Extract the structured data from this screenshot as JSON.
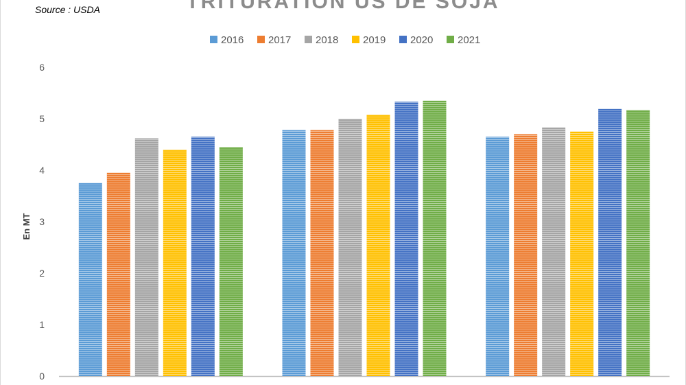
{
  "source": "Source : USDA",
  "chart_data": {
    "type": "bar",
    "title": "TRITURATION US DE SOJA",
    "ylabel": "En MT",
    "xlabel": "",
    "ylim": [
      0,
      6
    ],
    "yticks": [
      0,
      1,
      2,
      3,
      4,
      5,
      6
    ],
    "categories": [
      "",
      "",
      ""
    ],
    "legend_position": "top",
    "grid": false,
    "series": [
      {
        "name": "2016",
        "color": "#5b9bd5",
        "values": [
          3.75,
          4.78,
          4.65
        ]
      },
      {
        "name": "2017",
        "color": "#ed7d31",
        "values": [
          3.95,
          4.78,
          4.7
        ]
      },
      {
        "name": "2018",
        "color": "#a5a5a5",
        "values": [
          4.62,
          5.0,
          4.83
        ]
      },
      {
        "name": "2019",
        "color": "#ffc000",
        "values": [
          4.4,
          5.08,
          4.75
        ]
      },
      {
        "name": "2020",
        "color": "#4472c4",
        "values": [
          4.65,
          5.33,
          5.19
        ]
      },
      {
        "name": "2021",
        "color": "#70ad47",
        "values": [
          4.45,
          5.35,
          5.17
        ]
      }
    ]
  }
}
